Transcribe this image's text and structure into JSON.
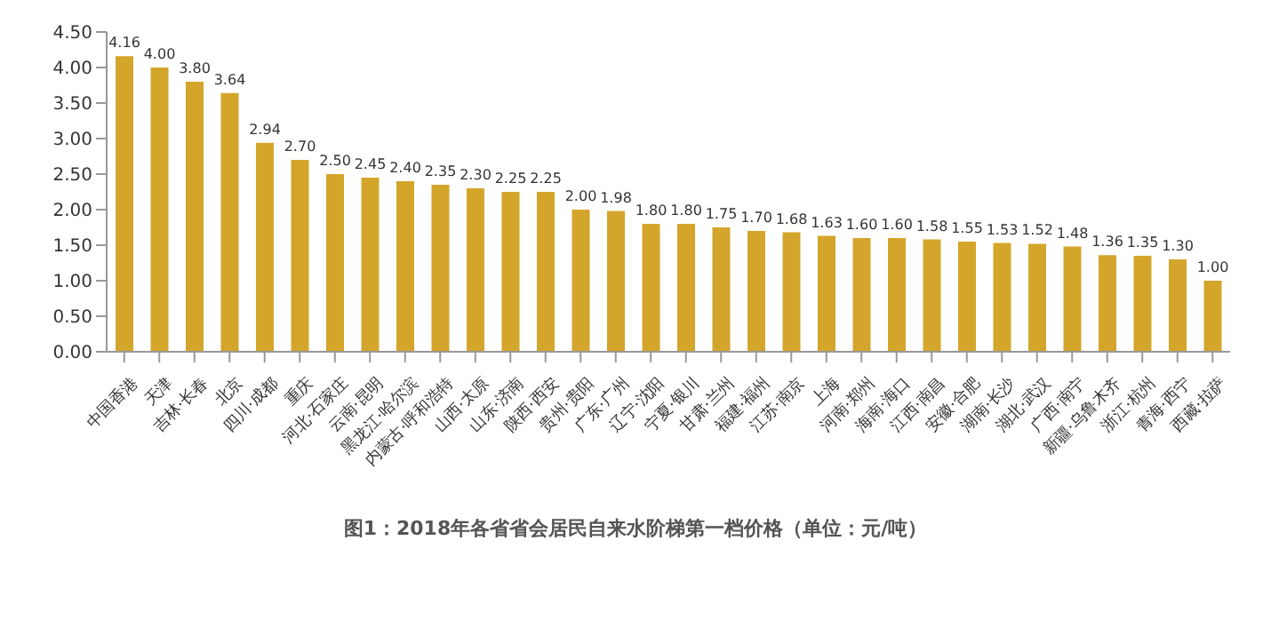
{
  "chart_data": {
    "type": "bar",
    "title": "图1：2018年各省省会居民自来水阶梯第一档价格（单位：元/吨）",
    "categories": [
      "中国香港",
      "天津",
      "吉林·长春",
      "北京",
      "四川·成都",
      "重庆",
      "河北·石家庄",
      "云南·昆明",
      "黑龙江·哈尔滨",
      "内蒙古·呼和浩特",
      "山西·太原",
      "山东·济南",
      "陕西·西安",
      "贵州·贵阳",
      "广东·广州",
      "辽宁·沈阳",
      "宁夏·银川",
      "甘肃·兰州",
      "福建·福州",
      "江苏·南京",
      "上海",
      "河南·郑州",
      "海南·海口",
      "江西·南昌",
      "安徽·合肥",
      "湖南·长沙",
      "湖北·武汉",
      "广西·南宁",
      "新疆·乌鲁木齐",
      "浙江·杭州",
      "青海·西宁",
      "西藏·拉萨"
    ],
    "values": [
      4.16,
      4.0,
      3.8,
      3.64,
      2.94,
      2.7,
      2.5,
      2.45,
      2.4,
      2.35,
      2.3,
      2.25,
      2.25,
      2.0,
      1.98,
      1.8,
      1.8,
      1.75,
      1.7,
      1.68,
      1.63,
      1.6,
      1.6,
      1.58,
      1.55,
      1.53,
      1.52,
      1.48,
      1.36,
      1.35,
      1.3,
      1.0
    ],
    "value_labels": [
      "4.16",
      "4.00",
      "3.80",
      "3.64",
      "2.94",
      "2.70",
      "2.50",
      "2.45",
      "2.40",
      "2.35",
      "2.30",
      "2.25",
      "2.25",
      "2.00",
      "1.98",
      "1.80",
      "1.80",
      "1.75",
      "1.70",
      "1.68",
      "1.63",
      "1.60",
      "1.60",
      "1.58",
      "1.55",
      "1.53",
      "1.52",
      "1.48",
      "1.36",
      "1.35",
      "1.30",
      "1.00"
    ],
    "color": "#d4a52b",
    "grid": false,
    "legend": false,
    "ylim": [
      0,
      4.5
    ],
    "yticks": [
      {
        "value": 0,
        "label": "0.00"
      },
      {
        "value": 0.5,
        "label": "0.50"
      },
      {
        "value": 1,
        "label": "1.00"
      },
      {
        "value": 1.5,
        "label": "1.50"
      },
      {
        "value": 2,
        "label": "2.00"
      },
      {
        "value": 2.5,
        "label": "2.50"
      },
      {
        "value": 3,
        "label": "3.00"
      },
      {
        "value": 3.5,
        "label": "3.50"
      },
      {
        "value": 4,
        "label": "4.00"
      },
      {
        "value": 4.5,
        "label": "4.50"
      }
    ]
  }
}
